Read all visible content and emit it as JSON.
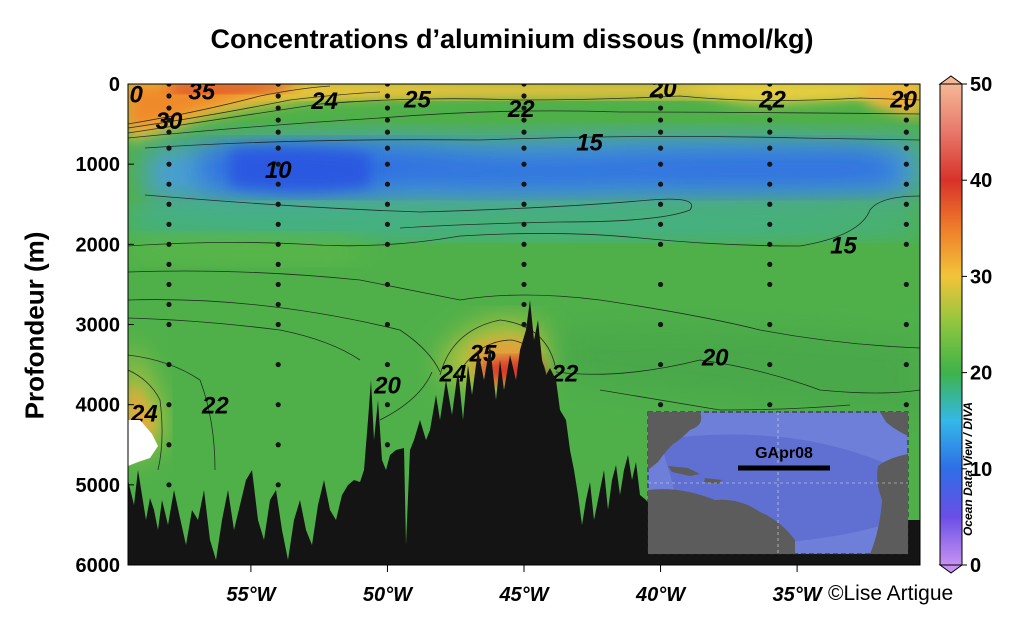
{
  "chart_data": {
    "type": "heatmap",
    "title": "Concentrations d’aluminium dissous  (nmol/kg)",
    "ylabel": "Profondeur (m)",
    "xlabel": "",
    "x_ticks": [
      "55°W",
      "50°W",
      "45°W",
      "40°W",
      "35°W"
    ],
    "x_tick_values": [
      -55,
      -50,
      -45,
      -40,
      -35
    ],
    "xlim": [
      -59.5,
      -30.5
    ],
    "y_ticks": [
      "0",
      "1000",
      "2000",
      "3000",
      "4000",
      "5000",
      "6000"
    ],
    "y_tick_values": [
      0,
      1000,
      2000,
      3000,
      4000,
      5000,
      6000
    ],
    "ylim": [
      0,
      6000
    ],
    "y_inverted": true,
    "colorbar": {
      "ticks": [
        "0",
        "10",
        "20",
        "30",
        "40",
        "50"
      ],
      "tick_values": [
        0,
        10,
        20,
        30,
        40,
        50
      ],
      "range": [
        0,
        50
      ],
      "colors": [
        "#c792f2",
        "#6a4fe6",
        "#2e6ee6",
        "#34b8e8",
        "#3db34a",
        "#8cc63f",
        "#f2c43a",
        "#ef7d2b",
        "#d8322a",
        "#e8786a",
        "#f4b896"
      ]
    },
    "stations": [
      {
        "lon": -58,
        "depths": [
          0,
          150,
          300,
          450,
          600,
          800,
          1000,
          1250,
          1500,
          1750,
          2000,
          2250,
          2500,
          2750,
          3000,
          3500,
          4000,
          4500,
          5000
        ]
      },
      {
        "lon": -54,
        "depths": [
          0,
          150,
          300,
          450,
          600,
          800,
          1000,
          1250,
          1500,
          1750,
          2000,
          2250,
          2500,
          2750,
          3000,
          3500,
          4000,
          4500,
          5000
        ]
      },
      {
        "lon": -50,
        "depths": [
          0,
          150,
          300,
          450,
          600,
          800,
          1000,
          1250,
          1500,
          1750,
          2000,
          2500,
          3000,
          3500,
          4000,
          4500
        ]
      },
      {
        "lon": -45,
        "depths": [
          0,
          150,
          300,
          450,
          600,
          800,
          1000,
          1250,
          1500,
          1750,
          2000,
          2250,
          2500,
          2750,
          3000
        ]
      },
      {
        "lon": -40,
        "depths": [
          0,
          150,
          300,
          450,
          600,
          800,
          1000,
          1250,
          1500,
          1750,
          2000,
          2500,
          3000,
          3500,
          4000,
          4500,
          5000
        ]
      },
      {
        "lon": -36,
        "depths": [
          0,
          150,
          300,
          450,
          600,
          800,
          1000,
          1250,
          1500,
          1750,
          2000,
          2250,
          2500,
          3000,
          3500,
          4000
        ]
      },
      {
        "lon": -31,
        "depths": [
          0,
          150,
          300,
          450,
          600,
          800,
          1000,
          1250,
          1500,
          1750,
          2000,
          2500,
          3000,
          3500,
          4000
        ]
      }
    ],
    "contour_labels": [
      {
        "text": "0",
        "lon": -59.2,
        "depth": 120
      },
      {
        "text": "35",
        "lon": -56.8,
        "depth": 80
      },
      {
        "text": "30",
        "lon": -58,
        "depth": 450
      },
      {
        "text": "24",
        "lon": -52.3,
        "depth": 200
      },
      {
        "text": "25",
        "lon": -48.9,
        "depth": 180
      },
      {
        "text": "22",
        "lon": -45.1,
        "depth": 300
      },
      {
        "text": "20",
        "lon": -39.9,
        "depth": 50
      },
      {
        "text": "22",
        "lon": -35.9,
        "depth": 180
      },
      {
        "text": "20",
        "lon": -31.1,
        "depth": 180
      },
      {
        "text": "15",
        "lon": -42.6,
        "depth": 720
      },
      {
        "text": "10",
        "lon": -54,
        "depth": 1060
      },
      {
        "text": "15",
        "lon": -33.3,
        "depth": 2000
      },
      {
        "text": "25",
        "lon": -46.5,
        "depth": 3350
      },
      {
        "text": "24",
        "lon": -47.6,
        "depth": 3600
      },
      {
        "text": "22",
        "lon": -43.5,
        "depth": 3600
      },
      {
        "text": "20",
        "lon": -38,
        "depth": 3400
      },
      {
        "text": "20",
        "lon": -50,
        "depth": 3750
      },
      {
        "text": "22",
        "lon": -56.3,
        "depth": 4000
      },
      {
        "text": "24",
        "lon": -58.9,
        "depth": 4100
      }
    ],
    "inset": {
      "section_label": "GApr08"
    }
  },
  "credit": "©Lise Artigue",
  "odv_label": "Ocean Data View / DIVA"
}
